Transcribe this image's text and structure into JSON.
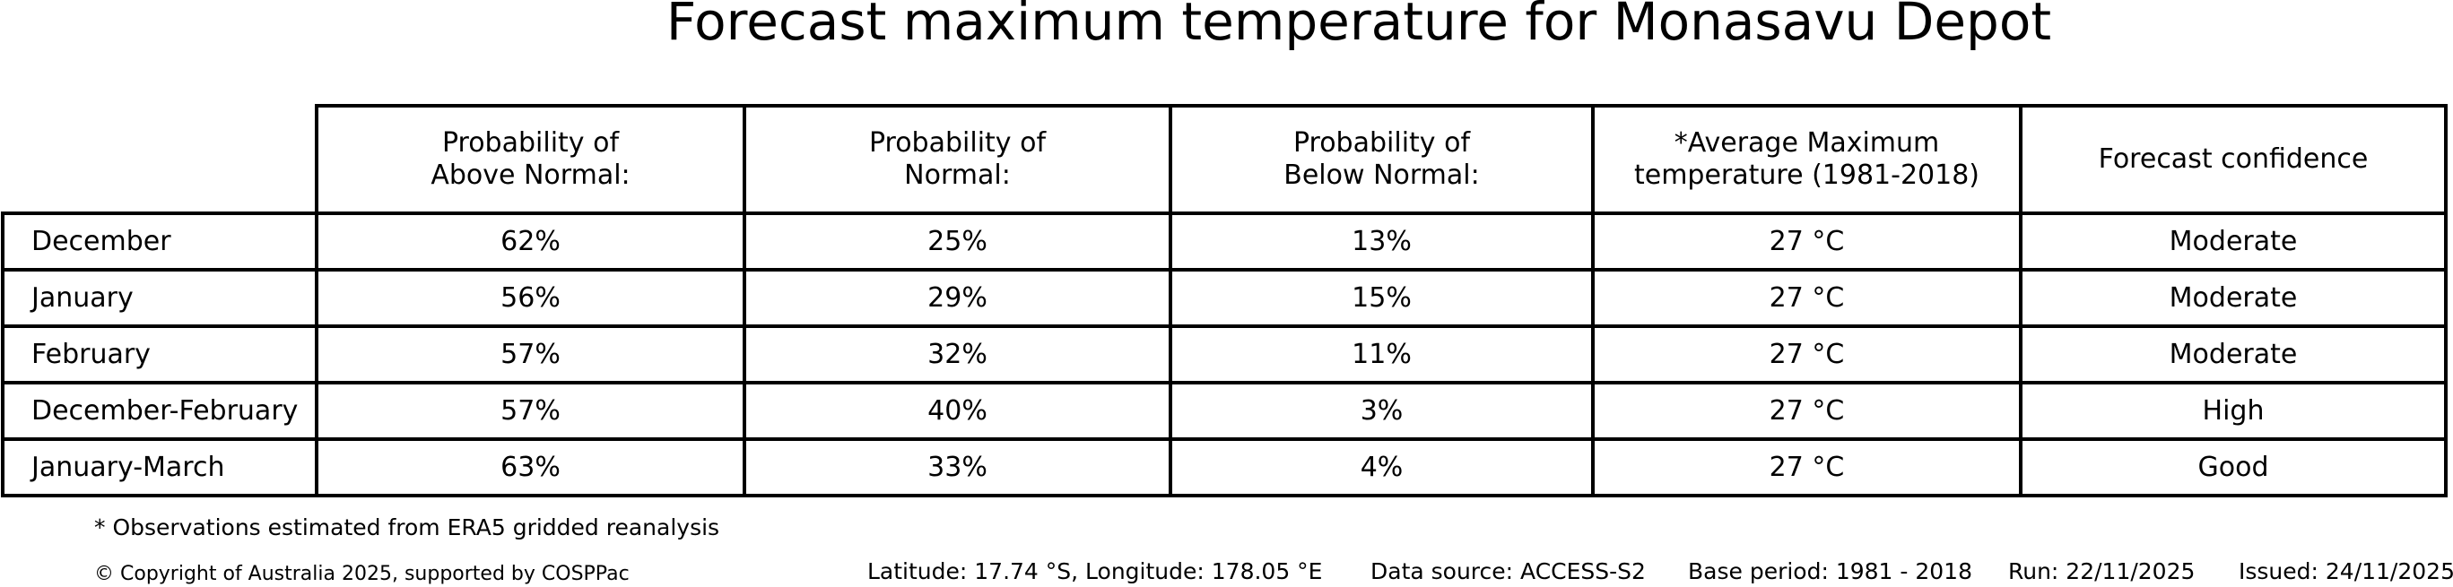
{
  "title": "Forecast maximum temperature for Monasavu Depot",
  "table": {
    "columns": [
      {
        "lines": [
          "Probability of",
          "Above Normal:"
        ]
      },
      {
        "lines": [
          "Probability of",
          "Normal:"
        ]
      },
      {
        "lines": [
          "Probability of",
          "Below Normal:"
        ]
      },
      {
        "lines": [
          "*Average Maximum",
          "temperature (1981-2018)"
        ]
      },
      {
        "lines": [
          "Forecast confidence"
        ]
      }
    ],
    "rows": [
      {
        "label": "December",
        "cells": [
          "62%",
          "25%",
          "13%",
          "27 °C",
          "Moderate"
        ]
      },
      {
        "label": "January",
        "cells": [
          "56%",
          "29%",
          "15%",
          "27 °C",
          "Moderate"
        ]
      },
      {
        "label": "February",
        "cells": [
          "57%",
          "32%",
          "11%",
          "27 °C",
          "Moderate"
        ]
      },
      {
        "label": "December-February",
        "cells": [
          "57%",
          "40%",
          "3%",
          "27 °C",
          "High"
        ]
      },
      {
        "label": "January-March",
        "cells": [
          "63%",
          "33%",
          "4%",
          "27 °C",
          "Good"
        ]
      }
    ]
  },
  "footnote": "* Observations estimated from ERA5 gridded reanalysis",
  "footer": {
    "copyright": "© Copyright of Australia 2025, supported by COSPPac",
    "location": "Latitude: 17.74 °S, Longitude: 178.05 °E",
    "data_source": "Data source: ACCESS-S2",
    "base_period": "Base period: 1981 - 2018",
    "run": "Run: 22/11/2025",
    "issued": "Issued: 24/11/2025"
  },
  "colors": {
    "text": "#000000",
    "border": "#000000",
    "background": "#ffffff"
  },
  "chart_data": {
    "type": "table",
    "title": "Forecast maximum temperature for Monasavu Depot",
    "columns": [
      "Probability of Above Normal:",
      "Probability of Normal:",
      "Probability of Below Normal:",
      "*Average Maximum temperature (1981-2018)",
      "Forecast confidence"
    ],
    "row_labels": [
      "December",
      "January",
      "February",
      "December-February",
      "January-March"
    ],
    "values": [
      [
        "62%",
        "25%",
        "13%",
        "27 °C",
        "Moderate"
      ],
      [
        "56%",
        "29%",
        "15%",
        "27 °C",
        "Moderate"
      ],
      [
        "57%",
        "32%",
        "11%",
        "27 °C",
        "Moderate"
      ],
      [
        "57%",
        "40%",
        "3%",
        "27 °C",
        "High"
      ],
      [
        "63%",
        "33%",
        "4%",
        "27 °C",
        "Good"
      ]
    ],
    "notes": [
      "* Observations estimated from ERA5 gridded reanalysis",
      "Latitude: 17.74 °S, Longitude: 178.05 °E",
      "Data source: ACCESS-S2",
      "Base period: 1981 - 2018",
      "Run: 22/11/2025",
      "Issued: 24/11/2025"
    ],
    "legend_position": "none",
    "grid": "all-cell-borders"
  }
}
